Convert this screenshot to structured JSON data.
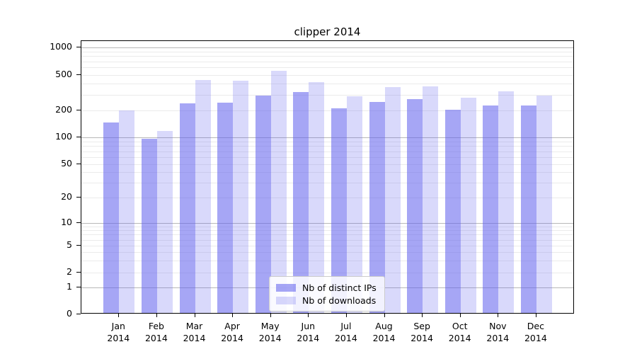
{
  "chart_data": {
    "type": "bar",
    "title": "clipper 2014",
    "categories": [
      "Jan 2014",
      "Feb 2014",
      "Mar 2014",
      "Apr 2014",
      "May 2014",
      "Jun 2014",
      "Jul 2014",
      "Aug 2014",
      "Sep 2014",
      "Oct 2014",
      "Nov 2014",
      "Dec 2014"
    ],
    "series": [
      {
        "name": "Nb of distinct IPs",
        "color": "rgba(97,97,238,0.56)",
        "values": [
          141,
          93,
          230,
          234,
          281,
          312,
          202,
          240,
          257,
          196,
          220,
          221
        ]
      },
      {
        "name": "Nb of downloads",
        "color": "rgba(97,97,238,0.24)",
        "values": [
          192,
          114,
          419,
          414,
          531,
          397,
          276,
          352,
          355,
          266,
          316,
          280
        ]
      }
    ],
    "xlabel": "",
    "ylabel": "",
    "yscale": "symlog",
    "ylim": [
      0,
      1000
    ],
    "ytick_labels": [
      "0",
      "1",
      "2",
      "5",
      "10",
      "20",
      "50",
      "100",
      "200",
      "500",
      "1000"
    ],
    "ytick_values": [
      0,
      1,
      2,
      5,
      10,
      20,
      50,
      100,
      200,
      500,
      1000
    ],
    "grid": true,
    "legend_position": "lower center"
  },
  "colors": {
    "grid_minor": "#ebebeb",
    "grid_major": "#b8b8b8",
    "spine": "#000000",
    "legend_border": "#cccccc",
    "legend_background": "rgba(255,255,255,0.85)"
  }
}
